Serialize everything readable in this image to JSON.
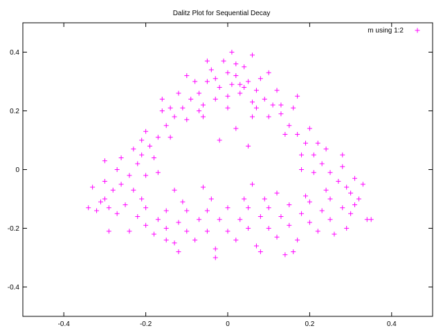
{
  "chart_data": {
    "type": "scatter",
    "title": "Dalitz Plot for Sequential Decay",
    "xlabel": "",
    "ylabel": "",
    "xlim": [
      -0.5,
      0.5
    ],
    "ylim": [
      -0.5,
      0.5
    ],
    "x_ticks": [
      -0.4,
      -0.2,
      0,
      0.2,
      0.4
    ],
    "y_ticks": [
      -0.4,
      -0.2,
      0,
      0.2,
      0.4
    ],
    "x_tick_labels": [
      "-0.4",
      "-0.2",
      "0",
      "0.2",
      "0.4"
    ],
    "y_tick_labels": [
      "-0.4",
      "-0.2",
      "0",
      "0.2",
      "0.4"
    ],
    "grid": false,
    "legend_position": "top-right",
    "marker": "+",
    "series": [
      {
        "name": "m using 1:2",
        "color": "#ff00ff",
        "points": [
          [
            0.0,
            0.33
          ],
          [
            0.02,
            0.32
          ],
          [
            -0.03,
            0.31
          ],
          [
            0.05,
            0.3
          ],
          [
            -0.05,
            0.3
          ],
          [
            0.01,
            0.29
          ],
          [
            0.04,
            0.28
          ],
          [
            -0.02,
            0.28
          ],
          [
            0.07,
            0.27
          ],
          [
            -0.07,
            0.26
          ],
          [
            0.03,
            0.26
          ],
          [
            0.09,
            0.24
          ],
          [
            -0.09,
            0.24
          ],
          [
            0.0,
            0.25
          ],
          [
            0.11,
            0.22
          ],
          [
            -0.11,
            0.21
          ],
          [
            0.06,
            0.23
          ],
          [
            -0.06,
            0.22
          ],
          [
            0.13,
            0.19
          ],
          [
            -0.13,
            0.18
          ],
          [
            0.15,
            0.15
          ],
          [
            -0.15,
            0.15
          ],
          [
            0.17,
            0.12
          ],
          [
            -0.17,
            0.11
          ],
          [
            0.19,
            0.09
          ],
          [
            -0.19,
            0.08
          ],
          [
            0.21,
            0.05
          ],
          [
            -0.21,
            0.05
          ],
          [
            0.23,
            0.02
          ],
          [
            -0.22,
            0.02
          ],
          [
            0.25,
            -0.01
          ],
          [
            -0.24,
            -0.02
          ],
          [
            0.27,
            -0.04
          ],
          [
            -0.26,
            -0.05
          ],
          [
            0.29,
            -0.06
          ],
          [
            -0.28,
            -0.07
          ],
          [
            0.02,
            0.36
          ],
          [
            -0.01,
            0.37
          ],
          [
            0.04,
            0.35
          ],
          [
            -0.04,
            0.34
          ],
          [
            0.08,
            0.31
          ],
          [
            -0.08,
            0.3
          ],
          [
            0.12,
            0.27
          ],
          [
            -0.12,
            0.26
          ],
          [
            0.16,
            0.21
          ],
          [
            -0.16,
            0.2
          ],
          [
            0.2,
            0.14
          ],
          [
            -0.2,
            0.13
          ],
          [
            0.24,
            0.07
          ],
          [
            -0.23,
            0.07
          ],
          [
            0.28,
            0.01
          ],
          [
            -0.27,
            0.0
          ],
          [
            0.31,
            -0.03
          ],
          [
            -0.3,
            -0.04
          ],
          [
            0.1,
            0.18
          ],
          [
            -0.1,
            0.17
          ],
          [
            0.14,
            0.12
          ],
          [
            -0.14,
            0.11
          ],
          [
            0.18,
            0.05
          ],
          [
            -0.18,
            0.04
          ],
          [
            0.21,
            -0.01
          ],
          [
            -0.2,
            -0.02
          ],
          [
            0.24,
            -0.07
          ],
          [
            -0.23,
            -0.07
          ],
          [
            0.0,
            0.21
          ],
          [
            0.06,
            0.18
          ],
          [
            -0.06,
            0.18
          ],
          [
            0.3,
            -0.08
          ],
          [
            -0.3,
            -0.1
          ],
          [
            0.25,
            -0.1
          ],
          [
            0.2,
            -0.11
          ],
          [
            0.15,
            -0.12
          ],
          [
            0.1,
            -0.13
          ],
          [
            0.05,
            -0.13
          ],
          [
            0.0,
            -0.13
          ],
          [
            -0.05,
            -0.14
          ],
          [
            -0.1,
            -0.14
          ],
          [
            -0.15,
            -0.14
          ],
          [
            -0.2,
            -0.13
          ],
          [
            -0.25,
            -0.12
          ],
          [
            0.28,
            -0.13
          ],
          [
            0.23,
            -0.14
          ],
          [
            0.18,
            -0.15
          ],
          [
            0.13,
            -0.16
          ],
          [
            0.08,
            -0.16
          ],
          [
            0.03,
            -0.17
          ],
          [
            -0.02,
            -0.17
          ],
          [
            -0.07,
            -0.17
          ],
          [
            -0.12,
            -0.18
          ],
          [
            -0.17,
            -0.17
          ],
          [
            -0.22,
            -0.16
          ],
          [
            -0.27,
            -0.15
          ],
          [
            0.25,
            -0.17
          ],
          [
            0.2,
            -0.18
          ],
          [
            0.15,
            -0.19
          ],
          [
            0.1,
            -0.2
          ],
          [
            0.05,
            -0.2
          ],
          [
            0.0,
            -0.21
          ],
          [
            -0.05,
            -0.21
          ],
          [
            -0.1,
            -0.21
          ],
          [
            -0.15,
            -0.2
          ],
          [
            -0.2,
            -0.19
          ],
          [
            0.12,
            -0.23
          ],
          [
            0.02,
            -0.24
          ],
          [
            -0.08,
            -0.24
          ],
          [
            -0.18,
            -0.22
          ],
          [
            0.22,
            -0.21
          ],
          [
            0.3,
            -0.15
          ],
          [
            -0.29,
            -0.13
          ],
          [
            0.34,
            -0.17
          ],
          [
            -0.32,
            -0.14
          ],
          [
            0.32,
            -0.1
          ],
          [
            -0.31,
            -0.11
          ],
          [
            0.16,
            -0.28
          ],
          [
            0.14,
            -0.29
          ],
          [
            0.07,
            -0.26
          ],
          [
            -0.03,
            -0.27
          ],
          [
            -0.13,
            -0.25
          ],
          [
            0.26,
            -0.22
          ],
          [
            -0.24,
            -0.21
          ],
          [
            0.01,
            0.4
          ],
          [
            -0.05,
            0.37
          ],
          [
            0.06,
            0.39
          ],
          [
            0.1,
            0.33
          ],
          [
            -0.1,
            0.32
          ],
          [
            -0.16,
            0.24
          ],
          [
            0.17,
            0.25
          ],
          [
            -0.26,
            0.04
          ],
          [
            0.28,
            0.05
          ],
          [
            0.33,
            -0.05
          ],
          [
            -0.33,
            -0.06
          ],
          [
            0.31,
            -0.12
          ],
          [
            -0.29,
            -0.21
          ],
          [
            0.29,
            -0.2
          ],
          [
            -0.34,
            -0.13
          ],
          [
            -0.3,
            0.03
          ],
          [
            0.35,
            -0.17
          ],
          [
            0.09,
            -0.1
          ],
          [
            -0.11,
            -0.11
          ],
          [
            0.19,
            -0.09
          ],
          [
            -0.21,
            -0.1
          ],
          [
            0.04,
            -0.1
          ],
          [
            -0.04,
            -0.1
          ],
          [
            0.17,
            -0.24
          ],
          [
            -0.15,
            -0.24
          ],
          [
            0.08,
            -0.28
          ],
          [
            -0.03,
            -0.3
          ],
          [
            -0.12,
            -0.28
          ],
          [
            0.18,
            0.0
          ],
          [
            -0.17,
            -0.01
          ],
          [
            0.22,
            0.09
          ],
          [
            -0.21,
            0.1
          ],
          [
            0.13,
            0.22
          ],
          [
            -0.14,
            0.21
          ],
          [
            0.03,
            0.29
          ],
          [
            -0.03,
            0.24
          ],
          [
            0.07,
            0.21
          ],
          [
            -0.07,
            0.2
          ],
          [
            0.02,
            0.14
          ],
          [
            0.05,
            0.08
          ],
          [
            -0.02,
            0.1
          ],
          [
            0.06,
            -0.05
          ],
          [
            -0.06,
            -0.06
          ],
          [
            0.12,
            -0.08
          ],
          [
            -0.13,
            -0.07
          ]
        ]
      }
    ]
  }
}
